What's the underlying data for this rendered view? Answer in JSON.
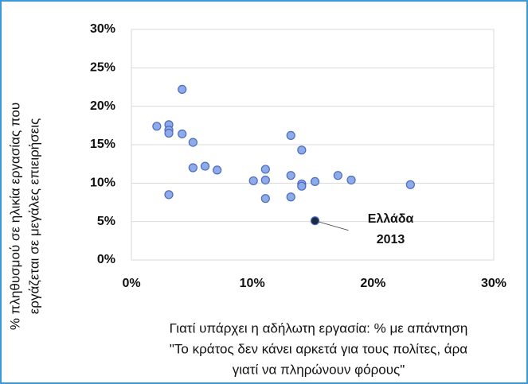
{
  "chart_data": {
    "type": "scatter",
    "x_label": [
      "Γιατί υπάρχει η αδήλωτη εργασία: % με απάντηση",
      "\"Το κράτος δεν κάνει αρκετά για τους πολίτες, άρα",
      "γιατί να πληρώνουν φόρους\""
    ],
    "y_label": [
      "% πληθυσμού σε ηλικία εργασίας που",
      "εργάζεται σε μεγάλες επιειρήσεις"
    ],
    "x": [
      2.1,
      3.1,
      3.1,
      3.1,
      4.2,
      4.2,
      5.1,
      5.1,
      6.1,
      7.1,
      3.1,
      10.1,
      11.1,
      11.1,
      11.1,
      13.2,
      13.2,
      13.2,
      14.1,
      14.1,
      14.1,
      15.2,
      17.1,
      18.2,
      23.1
    ],
    "y": [
      17.4,
      17.6,
      16.9,
      16.5,
      22.2,
      16.4,
      15.3,
      12.0,
      12.2,
      11.7,
      8.5,
      10.3,
      11.8,
      10.4,
      8.0,
      16.2,
      11.0,
      8.2,
      14.3,
      9.9,
      9.6,
      10.2,
      11.0,
      10.4,
      9.8
    ],
    "color": "#8eaae8",
    "highlight": {
      "x": 15.2,
      "y": 5.1,
      "color": "#1e2a44",
      "label": [
        "Ελλάδα",
        "2013"
      ]
    },
    "xlim": [
      0,
      30
    ],
    "ylim": [
      0,
      30
    ],
    "xticks": [
      {
        "value": 0,
        "label": "0%"
      },
      {
        "value": 10,
        "label": "10%"
      },
      {
        "value": 20,
        "label": "20%"
      },
      {
        "value": 30,
        "label": "30%"
      }
    ],
    "yticks": [
      {
        "value": 0,
        "label": "0%"
      },
      {
        "value": 5,
        "label": "5%"
      },
      {
        "value": 10,
        "label": "10%"
      },
      {
        "value": 15,
        "label": "15%"
      },
      {
        "value": 20,
        "label": "20%"
      },
      {
        "value": 25,
        "label": "25%"
      },
      {
        "value": 30,
        "label": "30%"
      }
    ],
    "grid": true
  }
}
